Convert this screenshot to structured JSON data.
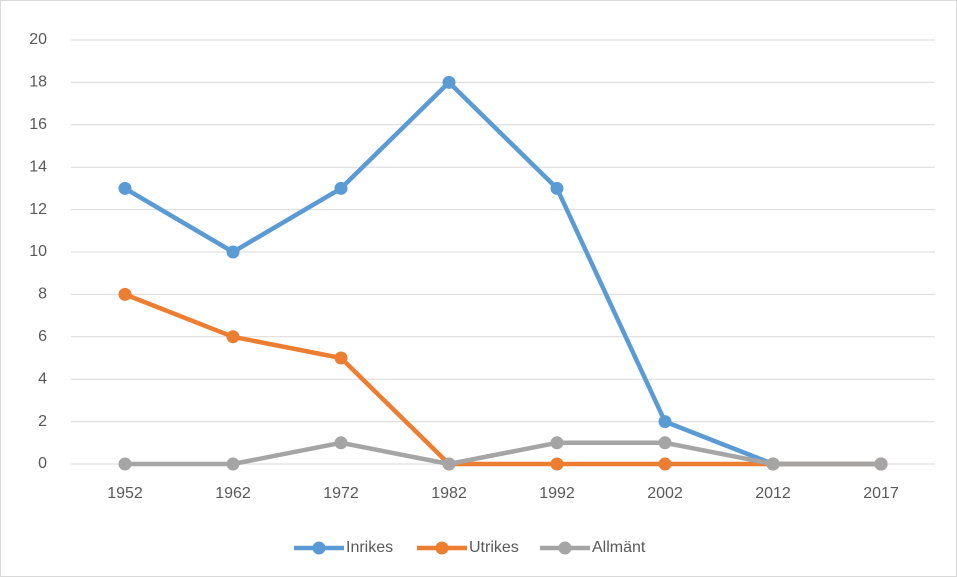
{
  "chart_data": {
    "type": "line",
    "categories": [
      "1952",
      "1962",
      "1972",
      "1982",
      "1992",
      "2002",
      "2012",
      "2017"
    ],
    "series": [
      {
        "name": "Inrikes",
        "color": "#5b9bd5",
        "values": [
          13,
          10,
          13,
          18,
          13,
          2,
          0,
          0
        ]
      },
      {
        "name": "Utrikes",
        "color": "#ed7d31",
        "values": [
          8,
          6,
          5,
          0,
          0,
          0,
          0,
          0
        ]
      },
      {
        "name": "Allmänt",
        "color": "#a5a5a5",
        "values": [
          0,
          0,
          1,
          0,
          1,
          1,
          0,
          0
        ]
      }
    ],
    "ylim": [
      0,
      20
    ],
    "yticks": [
      0,
      2,
      4,
      6,
      8,
      10,
      12,
      14,
      16,
      18,
      20
    ],
    "grid": true,
    "legend": "bottom"
  }
}
